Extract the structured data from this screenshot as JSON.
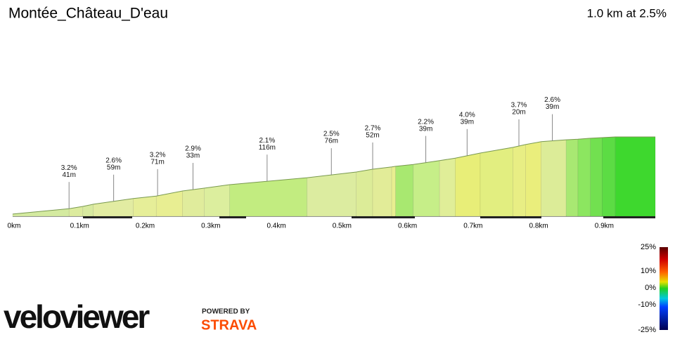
{
  "chart_data": {
    "type": "elevation-profile",
    "title": "Montée_Château_D'eau",
    "subtitle": "1.0 km at 2.5%",
    "x": [
      0,
      0.086,
      0.107,
      0.123,
      0.184,
      0.219,
      0.259,
      0.292,
      0.331,
      0.449,
      0.524,
      0.549,
      0.578,
      0.584,
      0.611,
      0.651,
      0.675,
      0.713,
      0.763,
      0.782,
      0.806,
      0.844,
      0.862,
      0.881,
      0.899,
      0.919,
      0.98
    ],
    "values": [
      0.7,
      2.4,
      3.1,
      3.8,
      5.6,
      6.4,
      8.0,
      8.9,
      10.0,
      12.2,
      14.0,
      14.9,
      15.6,
      15.8,
      16.4,
      17.6,
      18.4,
      20.0,
      21.8,
      22.7,
      23.6,
      24.2,
      24.4,
      24.7,
      24.9,
      25.1,
      25.1
    ],
    "segment_colors": [
      "#d4eaa0",
      "#dceb9e",
      "#d8eaa0",
      "#e2eca2",
      "#e6ee98",
      "#e8ee92",
      "#e0ec9c",
      "#dcee9e",
      "#c2ec80",
      "#dceca0",
      "#dcec98",
      "#e2ec98",
      "#e8ee90",
      "#a8e870",
      "#c6ee88",
      "#e0ee98",
      "#e8ee78",
      "#e2ee80",
      "#e8ee84",
      "#eaee7c",
      "#dcec98",
      "#a8e872",
      "#8ce660",
      "#72e050",
      "#5cdc44",
      "#3ed82e"
    ],
    "xlim": [
      0,
      0.98
    ],
    "ylim": [
      0,
      30
    ],
    "xticks": [
      {
        "value": 0,
        "label": "0km"
      },
      {
        "value": 0.1,
        "label": "0.1km"
      },
      {
        "value": 0.2,
        "label": "0.2km"
      },
      {
        "value": 0.3,
        "label": "0.3km"
      },
      {
        "value": 0.4,
        "label": "0.4km"
      },
      {
        "value": 0.5,
        "label": "0.5km"
      },
      {
        "value": 0.6,
        "label": "0.6km"
      },
      {
        "value": 0.7,
        "label": "0.7km"
      },
      {
        "value": 0.8,
        "label": "0.8km"
      },
      {
        "value": 0.9,
        "label": "0.9km"
      }
    ],
    "annotations": [
      {
        "x": 0.086,
        "grade": "3.2%",
        "length": "41m"
      },
      {
        "x": 0.154,
        "grade": "2.6%",
        "length": "59m"
      },
      {
        "x": 0.221,
        "grade": "3.2%",
        "length": "71m"
      },
      {
        "x": 0.275,
        "grade": "2.9%",
        "length": "33m"
      },
      {
        "x": 0.388,
        "grade": "2.1%",
        "length": "116m"
      },
      {
        "x": 0.486,
        "grade": "2.5%",
        "length": "76m"
      },
      {
        "x": 0.549,
        "grade": "2.7%",
        "length": "52m"
      },
      {
        "x": 0.63,
        "grade": "2.2%",
        "length": "39m"
      },
      {
        "x": 0.693,
        "grade": "4.0%",
        "length": "39m"
      },
      {
        "x": 0.772,
        "grade": "3.7%",
        "length": "20m"
      },
      {
        "x": 0.823,
        "grade": "2.6%",
        "length": "39m"
      }
    ],
    "legend_ticks": [
      {
        "value": 25,
        "label": "25%"
      },
      {
        "value": 10,
        "label": "10%"
      },
      {
        "value": 0,
        "label": "0%"
      },
      {
        "value": -10,
        "label": "-10%"
      },
      {
        "value": -25,
        "label": "-25%"
      }
    ]
  },
  "branding": {
    "logo": "veloviewer",
    "powered": "POWERED BY",
    "partner": "STRAVA"
  }
}
